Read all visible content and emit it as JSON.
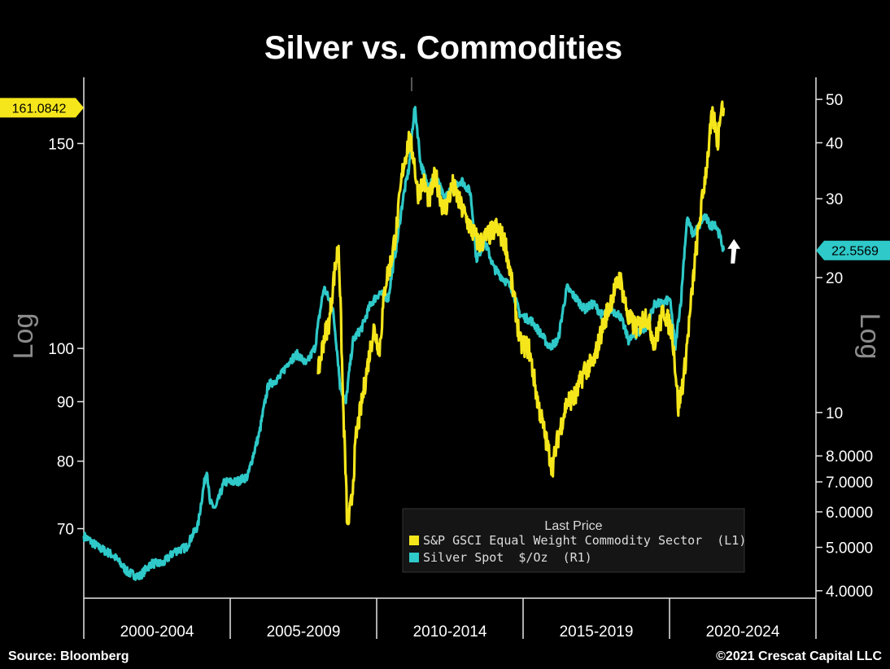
{
  "chart_data": {
    "type": "line",
    "title": "Silver vs. Commodities",
    "x_categories": [
      "2000-2004",
      "2005-2009",
      "2010-2014",
      "2015-2019",
      "2020-2024"
    ],
    "x_range_years": [
      2000.0,
      2025.0
    ],
    "y_left": {
      "label": "Log",
      "scale": "log",
      "range": [
        61,
        171
      ],
      "ticks": [
        {
          "v": 70,
          "t": "70"
        },
        {
          "v": 80,
          "t": "80"
        },
        {
          "v": 90,
          "t": "90"
        },
        {
          "v": 100,
          "t": "100"
        },
        {
          "v": 150,
          "t": "150"
        }
      ],
      "last_value_label": "161.0842"
    },
    "y_right": {
      "label": "Log",
      "scale": "log",
      "range": [
        3.85,
        56
      ],
      "ticks": [
        {
          "v": 4,
          "t": "4.0000"
        },
        {
          "v": 5,
          "t": "5.0000"
        },
        {
          "v": 6,
          "t": "6.0000"
        },
        {
          "v": 7,
          "t": "7.0000"
        },
        {
          "v": 8,
          "t": "8.0000"
        },
        {
          "v": 10,
          "t": "10"
        },
        {
          "v": 20,
          "t": "20"
        },
        {
          "v": 30,
          "t": "30"
        },
        {
          "v": 40,
          "t": "40"
        },
        {
          "v": 50,
          "t": "50"
        }
      ],
      "last_value_label": "22.5569"
    },
    "legend": {
      "title": "Last Price",
      "position": "bottom-right"
    },
    "series": [
      {
        "name": "S&P GSCI Equal Weight Commodity Sector  (L1)",
        "axis": "left",
        "color": "#f5e61c",
        "x": [
          2008.0,
          2008.2,
          2008.4,
          2008.5,
          2008.7,
          2008.85,
          2009.0,
          2009.15,
          2009.3,
          2009.5,
          2009.7,
          2009.9,
          2010.1,
          2010.3,
          2010.5,
          2010.7,
          2010.9,
          2011.1,
          2011.25,
          2011.4,
          2011.6,
          2011.8,
          2012.0,
          2012.3,
          2012.6,
          2012.9,
          2013.2,
          2013.5,
          2013.8,
          2014.1,
          2014.4,
          2014.7,
          2014.9,
          2015.2,
          2015.5,
          2015.8,
          2016.0,
          2016.2,
          2016.5,
          2016.8,
          2017.1,
          2017.4,
          2017.7,
          2018.0,
          2018.3,
          2018.6,
          2018.9,
          2019.2,
          2019.5,
          2019.8,
          2020.1,
          2020.3,
          2020.5,
          2020.7,
          2020.9,
          2021.1,
          2021.3,
          2021.45,
          2021.55,
          2021.65,
          2021.75,
          2021.85
        ],
        "values": [
          95,
          102,
          106,
          113,
          123,
          90,
          70,
          74,
          84,
          90,
          97,
          104,
          100,
          114,
          119,
          128,
          143,
          151,
          147,
          136,
          139,
          134,
          141,
          131,
          138,
          132,
          127,
          123,
          125,
          127,
          123,
          110,
          101,
          100,
          90,
          83,
          79,
          84,
          90,
          91,
          96,
          97,
          104,
          110,
          115,
          106,
          104,
          107,
          101,
          108,
          103,
          89,
          95,
          107,
          121,
          133,
          146,
          158,
          156,
          150,
          162,
          161
        ]
      },
      {
        "name": "Silver Spot  $/Oz  (R1)",
        "axis": "right",
        "color": "#2ec9c8",
        "x": [
          2000.0,
          2000.5,
          2001.0,
          2001.5,
          2001.9,
          2002.3,
          2002.7,
          2003.1,
          2003.5,
          2003.9,
          2004.2,
          2004.3,
          2004.5,
          2004.8,
          2005.2,
          2005.6,
          2006.0,
          2006.3,
          2006.7,
          2007.0,
          2007.3,
          2007.6,
          2007.9,
          2008.2,
          2008.5,
          2008.75,
          2008.95,
          2009.2,
          2009.5,
          2009.8,
          2010.1,
          2010.4,
          2010.7,
          2010.9,
          2011.1,
          2011.3,
          2011.5,
          2011.75,
          2012.0,
          2012.3,
          2012.6,
          2012.9,
          2013.2,
          2013.4,
          2013.7,
          2014.0,
          2014.3,
          2014.6,
          2014.9,
          2015.3,
          2015.6,
          2015.9,
          2016.2,
          2016.5,
          2016.8,
          2017.1,
          2017.4,
          2017.7,
          2018.0,
          2018.3,
          2018.6,
          2018.9,
          2019.2,
          2019.5,
          2019.8,
          2020.0,
          2020.2,
          2020.4,
          2020.6,
          2020.8,
          2021.0,
          2021.2,
          2021.4,
          2021.55,
          2021.7,
          2021.85
        ],
        "values": [
          5.3,
          5.0,
          4.8,
          4.4,
          4.3,
          4.6,
          4.6,
          4.9,
          5.0,
          5.6,
          7.5,
          6.3,
          6.1,
          7.0,
          7.0,
          7.2,
          9.0,
          11.5,
          12.0,
          13.0,
          13.5,
          12.8,
          14.0,
          19.0,
          17.0,
          11.5,
          10.5,
          14.5,
          15.5,
          17.5,
          18.5,
          18.0,
          24.0,
          30.0,
          35.0,
          48.0,
          36.0,
          32.0,
          34.0,
          30.0,
          32.0,
          33.0,
          31.0,
          22.0,
          24.0,
          21.0,
          20.0,
          19.0,
          16.5,
          16.0,
          15.0,
          14.0,
          14.5,
          19.0,
          18.0,
          17.0,
          17.5,
          16.5,
          17.0,
          16.5,
          14.5,
          15.0,
          15.5,
          17.5,
          17.5,
          18.0,
          14.0,
          18.0,
          27.0,
          25.0,
          26.0,
          27.5,
          26.0,
          26.5,
          25.0,
          23.0
        ]
      }
    ],
    "annotations": [
      {
        "type": "arrow-up",
        "x_year": 2022.2,
        "y_right_value": 22.8
      }
    ]
  },
  "footer": {
    "source": "Source: Bloomberg",
    "copyright": "©2021 Crescat Capital LLC"
  },
  "colors": {
    "background": "#000000",
    "yellow": "#f5e61c",
    "cyan": "#2ec9c8",
    "axis": "#e6e6e6",
    "log_label": "#8c8c8c"
  }
}
